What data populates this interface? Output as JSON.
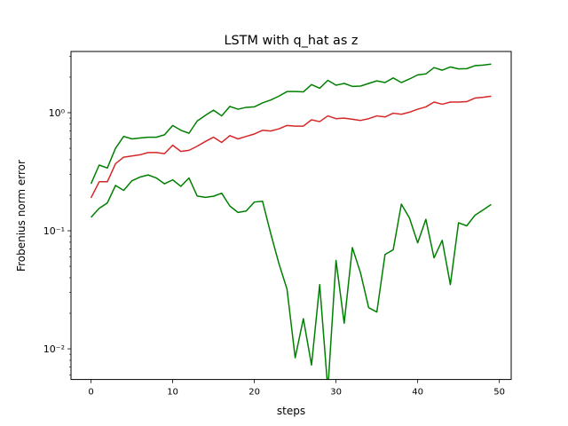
{
  "chart_data": {
    "type": "line",
    "title": "LSTM with q_hat as z",
    "xlabel": "steps",
    "ylabel": "Frobenius norm error",
    "xscale": "linear",
    "yscale": "log",
    "xlim": [
      -2.45,
      51.45
    ],
    "ylim": [
      0.0055,
      3.3
    ],
    "grid": false,
    "legend": "none",
    "x_ticks": [
      0,
      10,
      20,
      30,
      40,
      50
    ],
    "x_tick_labels": [
      "0",
      "10",
      "20",
      "30",
      "40",
      "50"
    ],
    "y_ticks": [
      0.01,
      0.1,
      1
    ],
    "y_tick_labels": [
      "10⁻²",
      "10⁻¹",
      "10⁰"
    ],
    "x": [
      0,
      1,
      2,
      3,
      4,
      5,
      6,
      7,
      8,
      9,
      10,
      11,
      12,
      13,
      14,
      15,
      16,
      17,
      18,
      19,
      20,
      21,
      22,
      23,
      24,
      25,
      26,
      27,
      28,
      29,
      30,
      31,
      32,
      33,
      34,
      35,
      36,
      37,
      38,
      39,
      40,
      41,
      42,
      43,
      44,
      45,
      46,
      47,
      48,
      49
    ],
    "series": [
      {
        "color": "#008000",
        "values": [
          0.25,
          0.36,
          0.34,
          0.5,
          0.63,
          0.6,
          0.61,
          0.62,
          0.62,
          0.65,
          0.78,
          0.71,
          0.67,
          0.85,
          0.95,
          1.05,
          0.94,
          1.13,
          1.07,
          1.11,
          1.12,
          1.21,
          1.28,
          1.38,
          1.51,
          1.51,
          1.5,
          1.73,
          1.61,
          1.88,
          1.71,
          1.77,
          1.67,
          1.68,
          1.77,
          1.86,
          1.8,
          1.97,
          1.8,
          1.93,
          2.09,
          2.13,
          2.41,
          2.29,
          2.44,
          2.35,
          2.36,
          2.5,
          2.53,
          2.58
        ]
      },
      {
        "color": "#d62728",
        "values": [
          0.19,
          0.26,
          0.26,
          0.37,
          0.42,
          0.43,
          0.44,
          0.46,
          0.46,
          0.45,
          0.53,
          0.47,
          0.48,
          0.52,
          0.57,
          0.62,
          0.56,
          0.64,
          0.6,
          0.63,
          0.66,
          0.71,
          0.7,
          0.73,
          0.78,
          0.77,
          0.77,
          0.87,
          0.84,
          0.94,
          0.89,
          0.9,
          0.88,
          0.86,
          0.89,
          0.94,
          0.92,
          0.99,
          0.97,
          1.01,
          1.07,
          1.12,
          1.23,
          1.18,
          1.23,
          1.23,
          1.24,
          1.33,
          1.35,
          1.38
        ]
      },
      {
        "color": "#008000",
        "values": [
          0.13,
          0.155,
          0.172,
          0.242,
          0.22,
          0.265,
          0.285,
          0.297,
          0.28,
          0.25,
          0.27,
          0.238,
          0.28,
          0.197,
          0.192,
          0.196,
          0.208,
          0.162,
          0.143,
          0.147,
          0.175,
          0.178,
          0.095,
          0.053,
          0.032,
          0.0084,
          0.018,
          0.0073,
          0.035,
          0.0045,
          0.056,
          0.0165,
          0.072,
          0.044,
          0.0223,
          0.0205,
          0.063,
          0.069,
          0.168,
          0.128,
          0.079,
          0.125,
          0.059,
          0.083,
          0.035,
          0.117,
          0.11,
          0.135,
          0.15,
          0.167
        ]
      }
    ]
  }
}
